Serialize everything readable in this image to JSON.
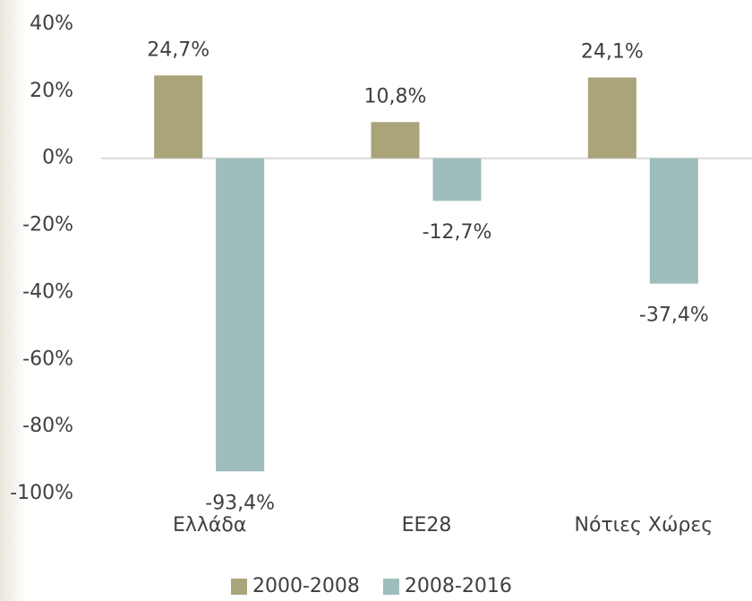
{
  "chart_data": {
    "type": "bar",
    "categories": [
      "Ελλάδα",
      "ΕΕ28",
      "Νότιες Χώρες"
    ],
    "series": [
      {
        "name": "2000-2008",
        "color": "#aaa47a",
        "values": [
          24.7,
          10.8,
          24.1
        ],
        "value_labels": [
          "24,7%",
          "10,8%",
          "24,1%"
        ]
      },
      {
        "name": "2008-2016",
        "color": "#9ebdbb",
        "values": [
          -93.4,
          -12.7,
          -37.4
        ],
        "value_labels": [
          "-93,4%",
          "-12,7%",
          "-37,4%"
        ]
      }
    ],
    "ylim": [
      -100,
      40
    ],
    "yticks": [
      {
        "value": -100,
        "label": "-100%"
      },
      {
        "value": -80,
        "label": "-80%"
      },
      {
        "value": -60,
        "label": "-60%"
      },
      {
        "value": -40,
        "label": "-40%"
      },
      {
        "value": -20,
        "label": "-20%"
      },
      {
        "value": 0,
        "label": "0%"
      },
      {
        "value": 20,
        "label": "20%"
      },
      {
        "value": 40,
        "label": "40%"
      }
    ],
    "grid": false,
    "legend": "bottom"
  }
}
